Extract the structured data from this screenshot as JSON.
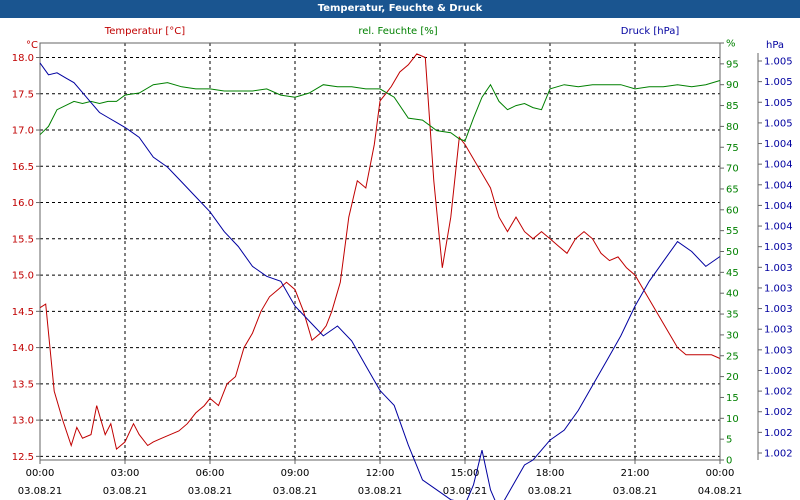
{
  "window": {
    "title": "Temperatur, Feuchte & Druck"
  },
  "chart_data": {
    "type": "line",
    "title": "Temperatur, Feuchte & Druck",
    "colors": {
      "temperature": "#c00000",
      "humidity": "#008000",
      "pressure": "#0000a0",
      "grid": "#000000",
      "frame": "#666666"
    },
    "axes": {
      "temperature": {
        "unit": "°C",
        "label": "Temperatur [°C]",
        "min": 12.45,
        "max": 18.2,
        "ticks": [
          "12.5",
          "13.0",
          "13.5",
          "14.0",
          "14.5",
          "15.0",
          "15.5",
          "16.0",
          "16.5",
          "17.0",
          "17.5",
          "18.0"
        ]
      },
      "humidity": {
        "unit": "%",
        "label": "rel. Feuchte [%]",
        "min": 0,
        "max": 100,
        "ticks": [
          "0",
          "5",
          "10",
          "15",
          "20",
          "25",
          "30",
          "35",
          "40",
          "45",
          "50",
          "55",
          "60",
          "65",
          "70",
          "75",
          "80",
          "85",
          "90",
          "95",
          "%"
        ]
      },
      "pressure": {
        "unit": "hPa",
        "label": "Druck [hPa]",
        "ticks": [
          "1.002",
          "1.002",
          "1.002",
          "1.002",
          "1.002",
          "1.003",
          "1.003",
          "1.003",
          "1.003",
          "1.003",
          "1.003",
          "1.004",
          "1.004",
          "1.004",
          "1.004",
          "1.004",
          "1.005",
          "1.005",
          "1.005",
          "1.005"
        ]
      }
    },
    "x_ticks": [
      {
        "time": "00:00",
        "date": "03.08.21"
      },
      {
        "time": "03:00",
        "date": "03.08.21"
      },
      {
        "time": "06:00",
        "date": "03.08.21"
      },
      {
        "time": "09:00",
        "date": "03.08.21"
      },
      {
        "time": "12:00",
        "date": "03.08.21"
      },
      {
        "time": "15:00",
        "date": "03.08.21"
      },
      {
        "time": "18:00",
        "date": "03.08.21"
      },
      {
        "time": "21:00",
        "date": "03.08.21"
      },
      {
        "time": "00:00",
        "date": "04.08.21"
      }
    ],
    "x_range_hours": [
      0,
      24
    ],
    "grid": true,
    "series": [
      {
        "name": "Temperatur [°C]",
        "axis": "temperature",
        "x": [
          0,
          0.2,
          0.5,
          0.8,
          1.1,
          1.3,
          1.5,
          1.8,
          2.0,
          2.3,
          2.5,
          2.7,
          3.0,
          3.3,
          3.5,
          3.8,
          4.0,
          4.3,
          4.6,
          4.9,
          5.2,
          5.5,
          5.8,
          6.0,
          6.3,
          6.6,
          6.9,
          7.2,
          7.5,
          7.8,
          8.1,
          8.4,
          8.7,
          9.0,
          9.3,
          9.6,
          9.9,
          10.1,
          10.3,
          10.6,
          10.9,
          11.2,
          11.5,
          11.8,
          12.0,
          12.2,
          12.4,
          12.7,
          13.0,
          13.3,
          13.6,
          13.9,
          14.2,
          14.5,
          14.8,
          15.0,
          15.3,
          15.6,
          15.9,
          16.2,
          16.5,
          16.8,
          17.1,
          17.4,
          17.7,
          18.0,
          18.3,
          18.6,
          18.9,
          19.2,
          19.5,
          19.8,
          20.1,
          20.4,
          20.7,
          21.0,
          21.3,
          21.6,
          21.9,
          22.2,
          22.5,
          22.8,
          23.1,
          23.4,
          23.7,
          24.0
        ],
        "y": [
          14.55,
          14.6,
          13.4,
          13.0,
          12.65,
          12.9,
          12.75,
          12.8,
          13.2,
          12.8,
          12.95,
          12.6,
          12.7,
          12.95,
          12.8,
          12.65,
          12.7,
          12.75,
          12.8,
          12.85,
          12.95,
          13.1,
          13.2,
          13.3,
          13.2,
          13.5,
          13.6,
          14.0,
          14.2,
          14.5,
          14.7,
          14.8,
          14.9,
          14.8,
          14.5,
          14.1,
          14.2,
          14.3,
          14.5,
          14.9,
          15.8,
          16.3,
          16.2,
          16.8,
          17.4,
          17.5,
          17.6,
          17.8,
          17.9,
          18.05,
          18.0,
          16.3,
          15.1,
          15.8,
          16.9,
          16.8,
          16.6,
          16.4,
          16.2,
          15.8,
          15.6,
          15.8,
          15.6,
          15.5,
          15.6,
          15.5,
          15.4,
          15.3,
          15.5,
          15.6,
          15.5,
          15.3,
          15.2,
          15.25,
          15.1,
          15.0,
          14.8,
          14.6,
          14.4,
          14.2,
          14.0,
          13.9,
          13.9,
          13.9,
          13.9,
          13.85
        ]
      },
      {
        "name": "rel. Feuchte [%]",
        "axis": "humidity",
        "x": [
          0,
          0.3,
          0.6,
          0.9,
          1.2,
          1.5,
          1.8,
          2.1,
          2.4,
          2.7,
          3.0,
          3.5,
          4.0,
          4.5,
          5.0,
          5.5,
          6.0,
          6.5,
          7.0,
          7.5,
          8.0,
          8.5,
          9.0,
          9.5,
          10.0,
          10.5,
          11.0,
          11.5,
          12.0,
          12.5,
          13.0,
          13.5,
          14.0,
          14.5,
          14.8,
          15.0,
          15.3,
          15.6,
          15.9,
          16.2,
          16.5,
          16.8,
          17.1,
          17.4,
          17.7,
          18.0,
          18.5,
          19.0,
          19.5,
          20.0,
          20.5,
          21.0,
          21.5,
          22.0,
          22.5,
          23.0,
          23.5,
          24.0
        ],
        "y": [
          78,
          80,
          84,
          85,
          86,
          85.5,
          86,
          85.5,
          86,
          86,
          87.5,
          88,
          90,
          90.5,
          89.5,
          89,
          89,
          88.5,
          88.5,
          88.5,
          89,
          87.5,
          87,
          88,
          90,
          89.5,
          89.5,
          89,
          89,
          87,
          82,
          81.5,
          79,
          78.5,
          77,
          76.5,
          82,
          87,
          90,
          86,
          84,
          85,
          85.5,
          84.5,
          84,
          89,
          90,
          89.5,
          90,
          90,
          90,
          89,
          89.5,
          89.5,
          90,
          89.5,
          90,
          91
        ]
      },
      {
        "name": "Druck [hPa]",
        "axis": "pressure",
        "x": [
          0,
          0.3,
          0.6,
          0.9,
          1.2,
          1.5,
          1.8,
          2.1,
          2.4,
          2.7,
          3.0,
          3.5,
          4.0,
          4.5,
          5.0,
          5.5,
          6.0,
          6.5,
          7.0,
          7.5,
          8.0,
          8.5,
          9.0,
          9.5,
          10.0,
          10.5,
          11.0,
          11.5,
          12.0,
          12.5,
          13.0,
          13.5,
          14.0,
          14.5,
          14.8,
          15.0,
          15.3,
          15.6,
          15.9,
          16.2,
          16.5,
          16.8,
          17.1,
          17.4,
          17.7,
          18.0,
          18.5,
          19.0,
          19.5,
          20.0,
          20.5,
          21.0,
          21.5,
          22.0,
          22.5,
          23.0,
          23.5,
          24.0
        ],
        "y": [
          1.0055,
          1.00538,
          1.0054,
          1.00535,
          1.0053,
          1.0052,
          1.0051,
          1.005,
          1.00495,
          1.0049,
          1.00485,
          1.00475,
          1.00455,
          1.00445,
          1.0043,
          1.00415,
          1.004,
          1.0038,
          1.00365,
          1.00345,
          1.00335,
          1.0033,
          1.00305,
          1.0029,
          1.00275,
          1.00285,
          1.0027,
          1.00245,
          1.0022,
          1.00205,
          1.00165,
          1.0013,
          1.0012,
          1.0011,
          1.00108,
          1.00105,
          1.00125,
          1.0016,
          1.0012,
          1.001,
          1.00115,
          1.0013,
          1.00145,
          1.0015,
          1.0016,
          1.0017,
          1.0018,
          1.002,
          1.00225,
          1.0025,
          1.00275,
          1.00305,
          1.0033,
          1.0035,
          1.0037,
          1.0036,
          1.00345,
          1.00355
        ]
      }
    ]
  }
}
